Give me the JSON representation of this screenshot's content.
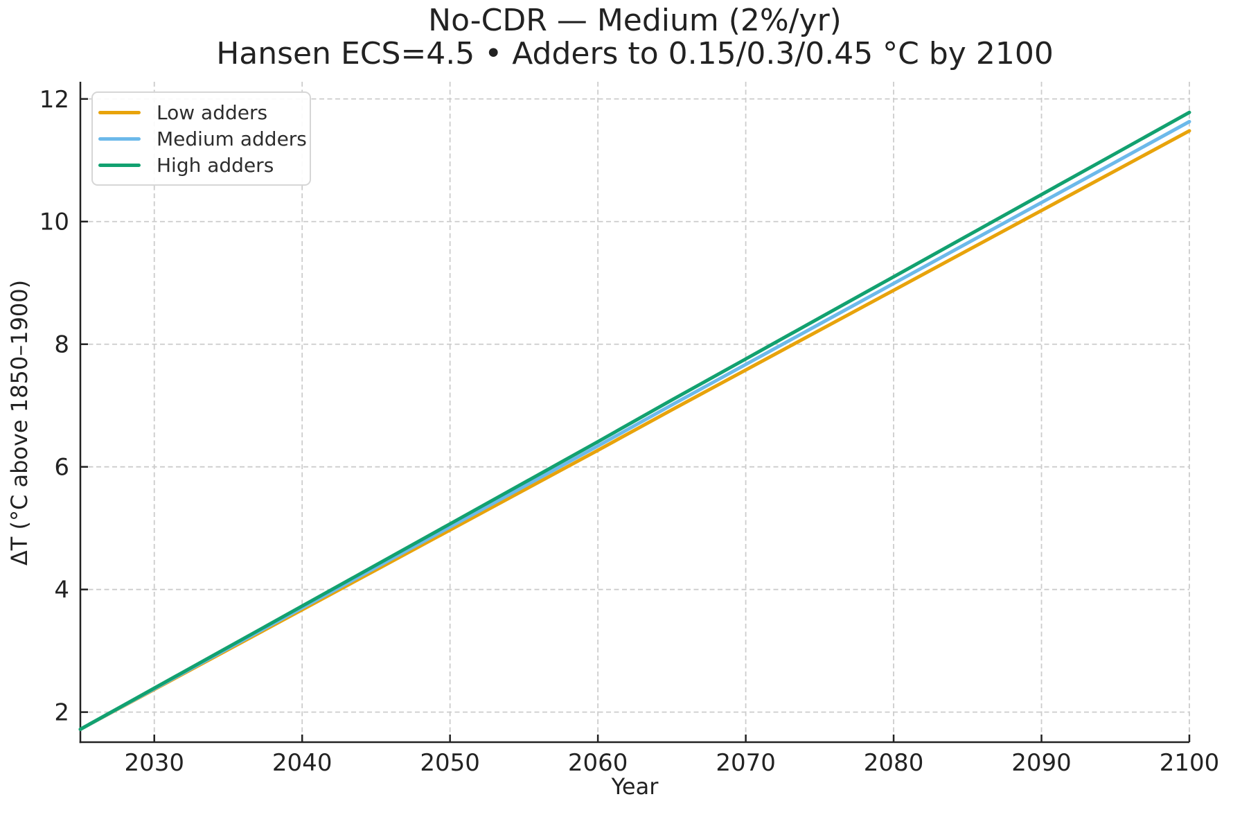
{
  "figure": {
    "background": "#ffffff"
  },
  "chart_data": {
    "type": "line",
    "title": "No-CDR — Medium (2%/yr)",
    "subtitle": "Hansen ECS=4.5 • Adders to 0.15/0.3/0.45 °C by 2100",
    "xlabel": "Year",
    "ylabel": "ΔT (°C above 1850–1900)",
    "xlim": [
      2025,
      2100
    ],
    "ylim": [
      1.51,
      12.28
    ],
    "x_ticks": [
      2030,
      2040,
      2050,
      2060,
      2070,
      2080,
      2090,
      2100
    ],
    "y_ticks": [
      2,
      4,
      6,
      8,
      10,
      12
    ],
    "grid": true,
    "grid_style": "dashed",
    "legend_position": "upper left",
    "legend": [
      "Low adders",
      "Medium adders",
      "High adders"
    ],
    "x": [
      2025,
      2030,
      2035,
      2040,
      2045,
      2050,
      2055,
      2060,
      2065,
      2070,
      2075,
      2080,
      2085,
      2090,
      2095,
      2100
    ],
    "series": [
      {
        "name": "Low adders",
        "color": "#E8A30B",
        "values": [
          1.72,
          2.37,
          3.02,
          3.67,
          4.32,
          4.97,
          5.62,
          6.27,
          6.93,
          7.58,
          8.23,
          8.88,
          9.53,
          10.18,
          10.83,
          11.48
        ]
      },
      {
        "name": "Medium adders",
        "color": "#6CB9EA",
        "values": [
          1.72,
          2.38,
          3.04,
          3.7,
          4.36,
          5.02,
          5.68,
          6.34,
          7.01,
          7.67,
          8.33,
          8.99,
          9.65,
          10.31,
          10.97,
          11.63
        ]
      },
      {
        "name": "High adders",
        "color": "#12A170",
        "values": [
          1.72,
          2.39,
          3.06,
          3.73,
          4.4,
          5.07,
          5.74,
          6.41,
          7.09,
          7.76,
          8.43,
          9.1,
          9.77,
          10.44,
          11.11,
          11.78
        ]
      }
    ]
  },
  "style": {
    "grid_color": "#cccccc",
    "axis_color": "#222222",
    "text_color": "#222222",
    "legend_border": "#d6d6d6",
    "line_width": 5
  }
}
